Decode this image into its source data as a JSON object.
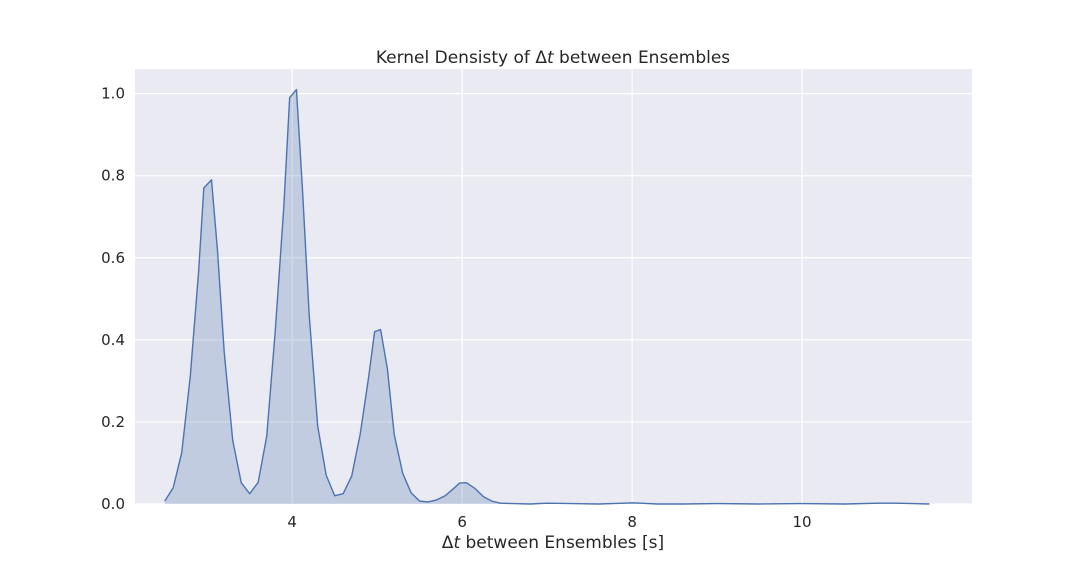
{
  "chart_data": {
    "type": "area",
    "title_parts": [
      "Kernel Densisty of ",
      "Δ",
      "t",
      " between Ensembles"
    ],
    "xlabel_parts": [
      "Δ",
      "t",
      " between Ensembles [s]"
    ],
    "ylabel": "",
    "xlim": [
      2.15,
      12.0
    ],
    "ylim": [
      0.0,
      1.06
    ],
    "x_ticks": [
      4,
      6,
      8,
      10
    ],
    "x_tick_labels": [
      "4",
      "6",
      "8",
      "10"
    ],
    "y_ticks": [
      0.0,
      0.2,
      0.4,
      0.6,
      0.8,
      1.0
    ],
    "y_tick_labels": [
      "0.0",
      "0.2",
      "0.4",
      "0.6",
      "0.8",
      "1.0"
    ],
    "grid": true,
    "colors": {
      "line": "#4c72b0",
      "fill": "#4c72b0",
      "background": "#eaeaf2",
      "grid": "#ffffff"
    },
    "series": [
      {
        "x": [
          2.5,
          2.6,
          2.7,
          2.8,
          2.9,
          2.96,
          3.05,
          3.12,
          3.2,
          3.3,
          3.4,
          3.5,
          3.6,
          3.7,
          3.8,
          3.9,
          3.97,
          4.05,
          4.12,
          4.2,
          4.3,
          4.4,
          4.5,
          4.6,
          4.7,
          4.8,
          4.9,
          4.97,
          5.04,
          5.12,
          5.2,
          5.3,
          5.4,
          5.5,
          5.6,
          5.7,
          5.8,
          5.9,
          5.97,
          6.05,
          6.15,
          6.25,
          6.35,
          6.45,
          6.6,
          6.8,
          7.0,
          7.3,
          7.6,
          7.9,
          8.0,
          8.1,
          8.3,
          8.6,
          9.0,
          9.5,
          10.0,
          10.5,
          10.9,
          11.1,
          11.3,
          11.5
        ],
        "y": [
          0.007,
          0.04,
          0.125,
          0.31,
          0.57,
          0.77,
          0.79,
          0.62,
          0.37,
          0.155,
          0.052,
          0.025,
          0.053,
          0.165,
          0.42,
          0.72,
          0.99,
          1.01,
          0.77,
          0.46,
          0.19,
          0.07,
          0.02,
          0.025,
          0.068,
          0.17,
          0.31,
          0.42,
          0.425,
          0.33,
          0.17,
          0.075,
          0.027,
          0.007,
          0.005,
          0.01,
          0.02,
          0.038,
          0.051,
          0.052,
          0.038,
          0.018,
          0.007,
          0.002,
          0.001,
          0.0,
          0.002,
          0.001,
          0.0,
          0.002,
          0.003,
          0.002,
          0.0,
          0.0,
          0.001,
          0.0,
          0.001,
          0.0,
          0.002,
          0.002,
          0.001,
          0.0
        ]
      }
    ]
  }
}
